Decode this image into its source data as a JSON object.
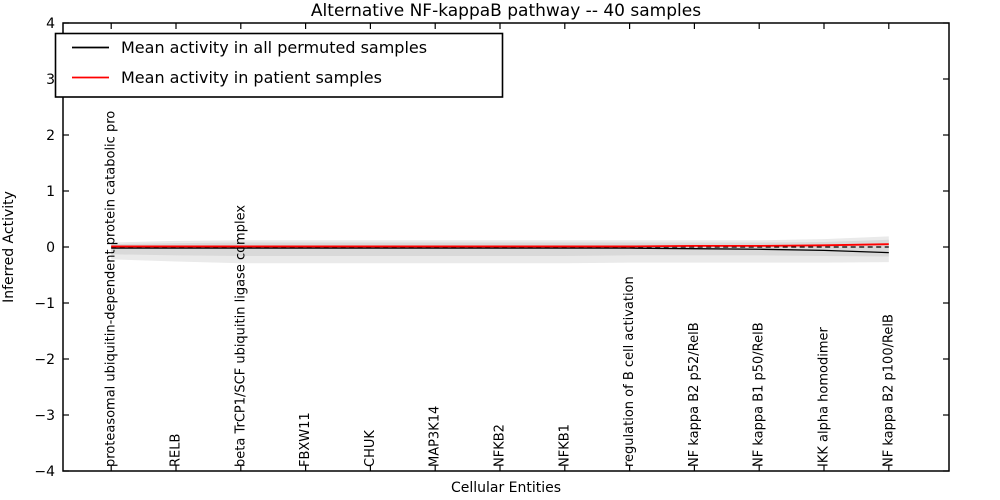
{
  "chart_data": {
    "type": "line",
    "title": "Alternative NF-kappaB pathway -- 40 samples",
    "xlabel": "Cellular Entities",
    "ylabel": "Inferred Activity",
    "ylim": [
      -4,
      4
    ],
    "yticks": [
      -4,
      -3,
      -2,
      -1,
      0,
      1,
      2,
      3,
      4
    ],
    "grid": false,
    "legend_position": "upper left",
    "categories": [
      "proteasomal ubiquitin-dependent protein catabolic pro",
      "RELB",
      "beta TrCP1/SCF ubiquitin ligase complex",
      "FBXW11",
      "CHUK",
      "MAP3K14",
      "NFKB2",
      "NFKB1",
      "regulation of B cell activation",
      "NF kappa B2 p52/RelB",
      "NF kappa B1 p50/RelB",
      "IKK alpha homodimer",
      "NF kappa B2 p100/RelB"
    ],
    "series": [
      {
        "name": "Mean activity in all permuted samples",
        "color": "#000000",
        "style": "solid",
        "width": 1.3,
        "in_legend": true,
        "values": [
          -0.02,
          -0.02,
          -0.02,
          -0.02,
          -0.02,
          -0.02,
          -0.02,
          -0.02,
          -0.02,
          -0.03,
          -0.04,
          -0.06,
          -0.1
        ]
      },
      {
        "name": "zero-reference",
        "color": "#000000",
        "style": "dashed",
        "width": 1.2,
        "in_legend": false,
        "values": [
          0,
          0,
          0,
          0,
          0,
          0,
          0,
          0,
          0,
          0,
          0,
          0,
          0
        ]
      },
      {
        "name": "Mean activity in patient samples",
        "color": "#ff0000",
        "style": "solid",
        "width": 1.8,
        "in_legend": true,
        "values": [
          0.01,
          0.01,
          0.01,
          0.01,
          0.01,
          0.01,
          0.01,
          0.01,
          0.01,
          0.02,
          0.02,
          0.03,
          0.05
        ]
      }
    ],
    "bands": [
      {
        "name": "permuted-range-outer",
        "color": "#eaeaea",
        "upper": [
          0.08,
          0.11,
          0.12,
          0.12,
          0.12,
          0.12,
          0.12,
          0.12,
          0.12,
          0.12,
          0.12,
          0.14,
          0.19
        ],
        "lower": [
          -0.22,
          -0.26,
          -0.29,
          -0.29,
          -0.29,
          -0.29,
          -0.29,
          -0.29,
          -0.28,
          -0.28,
          -0.28,
          -0.28,
          -0.27
        ]
      },
      {
        "name": "permuted-range-inner",
        "color": "#d9d9d9",
        "upper": [
          0.05,
          0.07,
          0.08,
          0.08,
          0.08,
          0.08,
          0.08,
          0.08,
          0.08,
          0.08,
          0.08,
          0.09,
          0.13
        ],
        "lower": [
          -0.13,
          -0.15,
          -0.16,
          -0.16,
          -0.16,
          -0.16,
          -0.16,
          -0.16,
          -0.15,
          -0.15,
          -0.15,
          -0.16,
          -0.17
        ]
      }
    ]
  }
}
